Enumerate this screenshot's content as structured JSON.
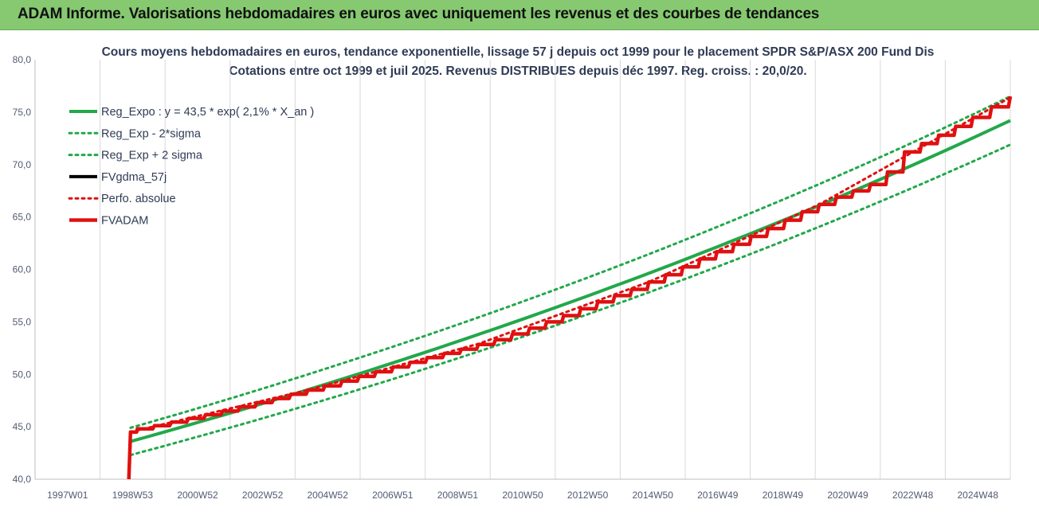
{
  "header": {
    "title": "ADAM Informe. Valorisations hebdomadaires en euros avec uniquement les revenus et des courbes de tendances"
  },
  "chart_data": {
    "type": "line",
    "title": "Cours moyens hebdomadaires en euros, tendance exponentielle, lissage 57 j depuis oct 1999 pour le placement SPDR S&P/ASX 200 Fund Dis",
    "subtitle": "Cotations entre oct 1999 et juil 2025. Revenus DISTRIBUES depuis déc 1997. Reg. croiss. : 20,0/20.",
    "xlabel": "",
    "ylabel": "",
    "x_tick_labels": [
      "1997W01",
      "1998W53",
      "2000W52",
      "2002W52",
      "2004W52",
      "2006W51",
      "2008W51",
      "2010W50",
      "2012W50",
      "2014W50",
      "2016W49",
      "2018W49",
      "2020W49",
      "2022W48",
      "2024W48"
    ],
    "y_tick_labels": [
      "40,0",
      "45,0",
      "50,0",
      "55,0",
      "60,0",
      "65,0",
      "70,0",
      "75,0",
      "80,0"
    ],
    "ylim": [
      40,
      80
    ],
    "xlim": [
      1997.0,
      2025.6
    ],
    "grid": "vertical",
    "legend_position": "top-left",
    "series": [
      {
        "name": "Reg_Expo : y = 43,5 * exp( 2,1% *  X_an )",
        "style": "solid",
        "color": "#22a84a",
        "x": [
          1999.8,
          2025.6
        ],
        "y": [
          43.6,
          74.2
        ]
      },
      {
        "name": "Reg_Exp - 2*sigma",
        "style": "dotted",
        "color": "#22a84a",
        "x": [
          1999.8,
          2025.6
        ],
        "y": [
          42.3,
          71.9
        ]
      },
      {
        "name": "Reg_Exp + 2 sigma",
        "style": "dotted",
        "color": "#22a84a",
        "x": [
          1999.8,
          2025.6
        ],
        "y": [
          44.9,
          76.5
        ]
      },
      {
        "name": "FVgdma_57j",
        "style": "solid",
        "color": "#000000",
        "x": [
          1999.75,
          1999.8,
          2000.0,
          2000.5,
          2001.5,
          2002.5,
          2003.5,
          2004.5,
          2005.5,
          2006.5,
          2007.5,
          2008.5,
          2009.5,
          2010.5,
          2011.5,
          2012.5,
          2013.5,
          2014.5,
          2015.5,
          2016.5,
          2017.5,
          2018.5,
          2019.5,
          2020.5,
          2021.5,
          2022.0,
          2022.5,
          2023.5,
          2024.5,
          2025.6
        ],
        "y": [
          40.0,
          44.5,
          44.8,
          45.1,
          45.8,
          46.5,
          47.3,
          48.1,
          48.9,
          49.8,
          50.7,
          51.6,
          52.4,
          53.3,
          54.4,
          55.6,
          56.9,
          58.1,
          59.5,
          61.0,
          62.4,
          63.9,
          65.5,
          66.9,
          68.1,
          69.3,
          71.2,
          72.8,
          74.5,
          76.5
        ]
      },
      {
        "name": "Perfo. absolue",
        "style": "dotted",
        "color": "#e01010",
        "x": [
          1999.8,
          2005.0,
          2010.0,
          2015.0,
          2020.0,
          2025.6
        ],
        "y": [
          44.5,
          48.5,
          52.9,
          58.8,
          66.2,
          76.4
        ]
      },
      {
        "name": "FVADAM",
        "style": "solid-thick",
        "color": "#e01010",
        "x": [
          1999.75,
          1999.8,
          2000.0,
          2000.5,
          2001.5,
          2002.5,
          2003.5,
          2004.5,
          2005.5,
          2006.5,
          2007.5,
          2008.5,
          2009.5,
          2010.5,
          2011.5,
          2012.5,
          2013.5,
          2014.5,
          2015.5,
          2016.5,
          2017.5,
          2018.5,
          2019.5,
          2020.5,
          2021.5,
          2022.0,
          2022.5,
          2023.5,
          2024.5,
          2025.6
        ],
        "y": [
          40.0,
          44.5,
          44.8,
          45.1,
          45.8,
          46.5,
          47.3,
          48.1,
          48.9,
          49.8,
          50.7,
          51.6,
          52.4,
          53.3,
          54.4,
          55.6,
          56.9,
          58.1,
          59.5,
          61.0,
          62.4,
          63.9,
          65.5,
          66.9,
          68.1,
          69.3,
          71.2,
          72.8,
          74.5,
          76.5
        ]
      }
    ]
  }
}
